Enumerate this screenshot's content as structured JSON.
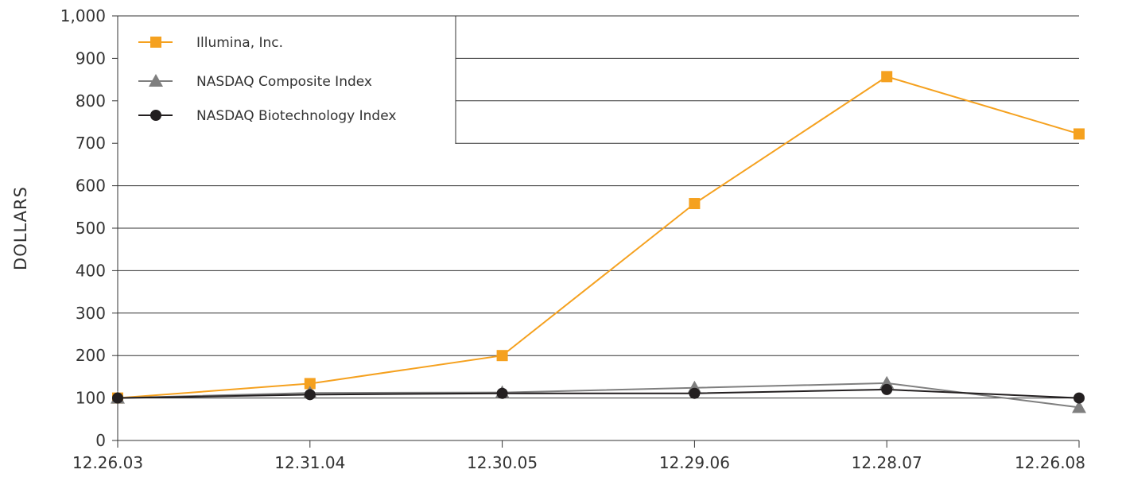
{
  "chart_data": {
    "type": "line",
    "ylabel": "DOLLARS",
    "xlabel": "",
    "title": "",
    "categories": [
      "12.26.03",
      "12.31.04",
      "12.30.05",
      "12.29.06",
      "12.28.07",
      "12.26.08"
    ],
    "y_ticks": [
      "0",
      "100",
      "200",
      "300",
      "400",
      "500",
      "600",
      "700",
      "800",
      "900",
      "1,000"
    ],
    "ylim": [
      0,
      1000
    ],
    "grid": true,
    "legend_position": "top-left",
    "series": [
      {
        "name": "Illumina, Inc.",
        "values": [
          100,
          134,
          200,
          558,
          857,
          722
        ],
        "color": "#f5a11f",
        "marker": "square"
      },
      {
        "name": "NASDAQ Composite Index",
        "values": [
          100,
          112,
          113,
          124,
          135,
          78
        ],
        "color": "#7f7f7f",
        "marker": "triangle"
      },
      {
        "name": "NASDAQ Biotechnology Index",
        "values": [
          100,
          108,
          111,
          111,
          120,
          100
        ],
        "color": "#231f20",
        "marker": "circle"
      }
    ]
  }
}
